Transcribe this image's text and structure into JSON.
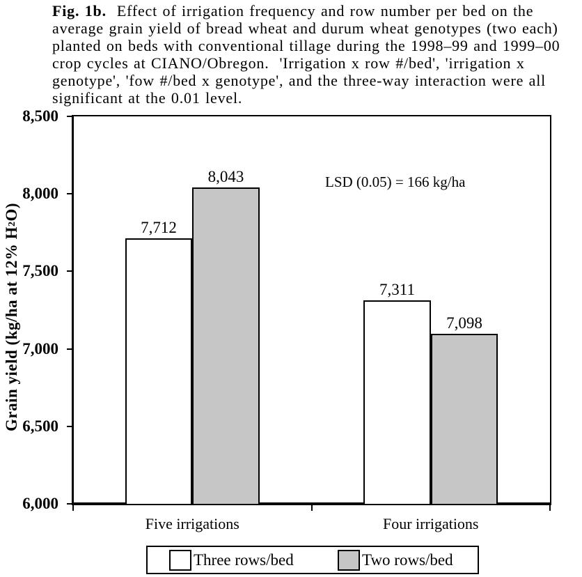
{
  "caption": {
    "bold_label": "Fig. 1b.",
    "lines": [
      "  Effect of irrigation frequency and row number per bed on the",
      "average grain yield of bread wheat and durum wheat genotypes (two each)",
      "planted on beds with conventional tillage during the 1998–99 and 1999–00",
      "crop cycles at CIANO/Obregon.  'Irrigation x row #/bed', 'irrigation x",
      "genotype', 'fow #/bed x genotype', and the three-way interaction were all",
      "significant at the 0.01 level."
    ]
  },
  "chart_data": {
    "type": "bar",
    "title": "",
    "categories": [
      "Five irrigations",
      "Four irrigations"
    ],
    "series": [
      {
        "name": "Three rows/bed",
        "color": "#ffffff",
        "values": [
          7712,
          7311
        ],
        "value_labels": [
          "7,712",
          "7,311"
        ]
      },
      {
        "name": "Two rows/bed",
        "color": "#c6c6c6",
        "values": [
          8043,
          7098
        ],
        "value_labels": [
          "8,043",
          "7,098"
        ]
      }
    ],
    "ylabel_prefix": "Grain yield (kg/ha at 12% H",
    "ylabel_sub": "2",
    "ylabel_suffix": "O)",
    "ylim": [
      6000,
      8500
    ],
    "ytick_values": [
      6000,
      6500,
      7000,
      7500,
      8000,
      8500
    ],
    "ytick_labels": [
      "6,000",
      "6,500",
      "7,000",
      "7,500",
      "8,000",
      "8,500"
    ],
    "grid": false,
    "legend_position": "bottom",
    "annotation": {
      "text": "LSD (0.05) = 166 kg/ha"
    }
  }
}
